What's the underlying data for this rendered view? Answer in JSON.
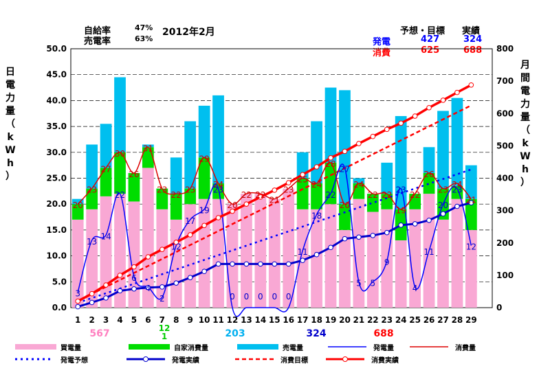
{
  "header": {
    "self_sufficiency_label": "自給率",
    "self_sufficiency_value": "47%",
    "sell_rate_label": "売電率",
    "sell_rate_value": "63%",
    "period": "2012年2月",
    "col_forecast": "予想・目標",
    "col_actual": "実績",
    "gen_label": "発電",
    "gen_target": "427",
    "gen_actual": "324",
    "cons_label": "消費",
    "cons_target": "625",
    "cons_actual": "688"
  },
  "axes": {
    "left_title": [
      "日",
      "電",
      "力",
      "量",
      "（",
      "k",
      "W",
      "h",
      "）"
    ],
    "right_title": [
      "月",
      "間",
      "電",
      "力",
      "量",
      "（",
      "k",
      "W",
      "h",
      "）"
    ]
  },
  "totals": [
    {
      "text": "567",
      "color": "#ff80c0"
    },
    {
      "text": "12\n1",
      "color": "#00cc00"
    },
    {
      "text": "203",
      "color": "#00b0f0"
    },
    {
      "text": "324",
      "color": "#0000cc"
    },
    {
      "text": "688",
      "color": "#ff0000"
    }
  ],
  "legend": [
    {
      "label": "買電量",
      "kind": "box",
      "color": "#f9a8d4"
    },
    {
      "label": "自家消費量",
      "kind": "box",
      "color": "#00dd00"
    },
    {
      "label": "売電量",
      "kind": "box",
      "color": "#00bfef"
    },
    {
      "label": "発電量",
      "kind": "line",
      "color": "#0000ff"
    },
    {
      "label": "消費量",
      "kind": "line",
      "color": "#dd0000"
    },
    {
      "label": "発電予想",
      "kind": "dot",
      "color": "#0000ff"
    },
    {
      "label": "発電実績",
      "kind": "mark",
      "color": "#0000cc"
    },
    {
      "label": "消費目標",
      "kind": "dash",
      "color": "#ff0000"
    },
    {
      "label": "消費実績",
      "kind": "mark",
      "color": "#ff0000"
    }
  ],
  "chart_data": {
    "type": "bar",
    "categories": [
      "1",
      "2",
      "3",
      "4",
      "5",
      "6",
      "7",
      "8",
      "9",
      "10",
      "11",
      "12",
      "13",
      "14",
      "15",
      "16",
      "17",
      "18",
      "19",
      "20",
      "21",
      "22",
      "23",
      "24",
      "25",
      "26",
      "27",
      "28",
      "29"
    ],
    "ylim_left": [
      0,
      50
    ],
    "ylim_right": [
      0,
      800
    ],
    "left_ticks": [
      "0.0",
      "5.0",
      "10.0",
      "15.0",
      "20.0",
      "25.0",
      "30.0",
      "35.0",
      "40.0",
      "45.0",
      "50.0"
    ],
    "right_ticks": [
      "0",
      "100",
      "200",
      "300",
      "400",
      "500",
      "600",
      "700",
      "800"
    ],
    "purchase": [
      17,
      19,
      21.5,
      22,
      20.5,
      27,
      19,
      17,
      20,
      21,
      21,
      20,
      22,
      22,
      21,
      23,
      19,
      19,
      20,
      15,
      21,
      18.5,
      19,
      13,
      19,
      22,
      17,
      21,
      15
    ],
    "self_consumption": [
      3,
      4,
      5.5,
      8,
      5.5,
      4,
      4,
      5,
      3,
      8,
      3,
      0,
      0,
      0,
      0,
      0,
      6,
      5,
      8,
      5,
      3,
      3.5,
      3,
      6,
      3,
      4,
      6,
      2.5,
      6
    ],
    "sold": [
      1,
      8.5,
      8.5,
      14.5,
      0,
      0.5,
      0,
      7,
      13,
      10,
      17,
      0,
      0,
      0,
      0,
      0,
      5,
      12,
      14.5,
      22,
      1,
      0,
      6,
      18,
      0,
      5,
      15,
      17,
      6.5
    ],
    "generation": [
      3,
      13,
      14,
      22,
      6,
      4,
      2,
      12,
      17,
      19,
      23,
      0,
      0,
      0,
      0,
      0,
      11,
      18,
      22,
      27,
      5,
      5,
      9,
      23,
      4,
      11,
      20,
      23,
      12
    ],
    "consumption": [
      20,
      23,
      27,
      30,
      26,
      31,
      23,
      22,
      23,
      29,
      24,
      20,
      22,
      22,
      21,
      23,
      25,
      24,
      28,
      20,
      24,
      22,
      22,
      19,
      22,
      26,
      23,
      24,
      21
    ],
    "generation_cumulative": [
      3,
      16,
      30,
      52,
      58,
      62,
      64,
      76,
      93,
      112,
      135,
      135,
      135,
      135,
      135,
      135,
      146,
      164,
      186,
      213,
      218,
      223,
      232,
      255,
      259,
      270,
      290,
      313,
      324
    ],
    "consumption_cumulative": [
      20,
      43,
      70,
      100,
      126,
      157,
      180,
      202,
      225,
      254,
      278,
      298,
      320,
      342,
      363,
      386,
      411,
      435,
      463,
      483,
      507,
      529,
      551,
      570,
      592,
      618,
      641,
      665,
      688
    ],
    "generation_forecast_line": {
      "from": [
        1,
        15
      ],
      "to": [
        29,
        427
      ]
    },
    "consumption_target_line": {
      "from": [
        1,
        21
      ],
      "to": [
        29,
        625
      ]
    }
  }
}
